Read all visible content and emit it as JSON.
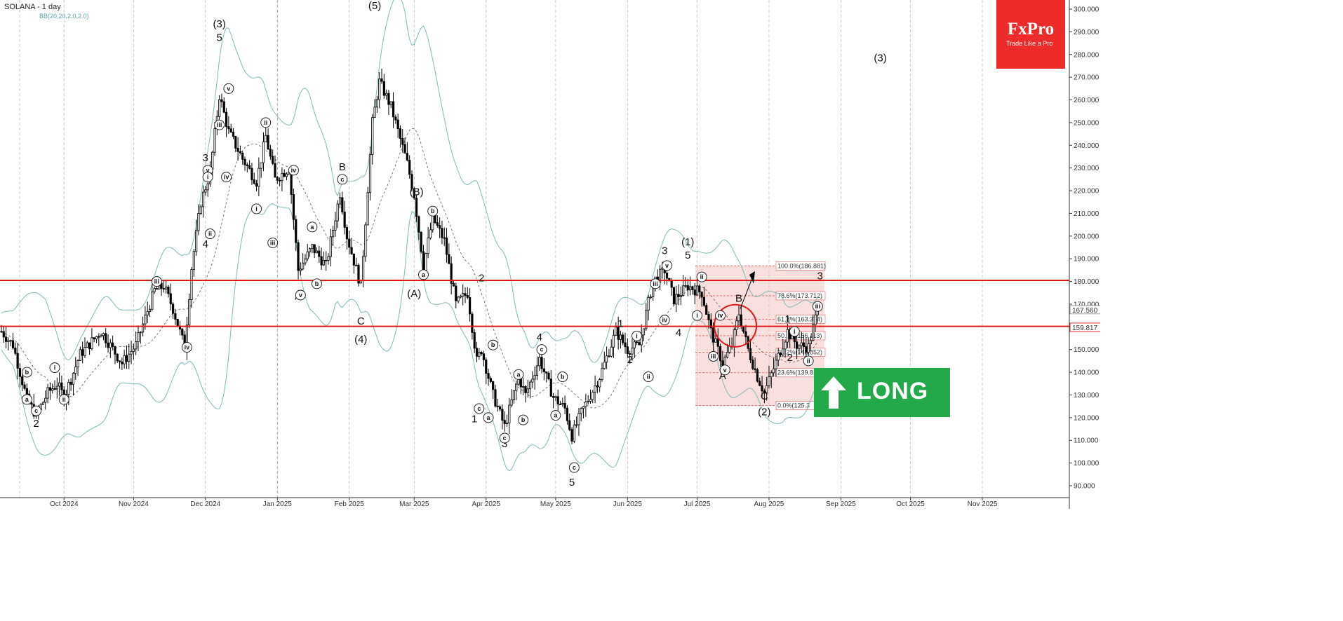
{
  "title": "SOLANA - 1 day",
  "indicator": "BB(20,20,2.0,2.0)",
  "logo": {
    "name": "FxPro",
    "tagline": "Trade Like a Pro",
    "color": "#ee2b2b"
  },
  "signal": {
    "label": "LONG",
    "color": "#23a94a",
    "icon": "arrow-up-icon"
  },
  "price_axis": {
    "ticks": [
      "300.000",
      "290.000",
      "280.000",
      "270.000",
      "260.000",
      "250.000",
      "240.000",
      "230.000",
      "220.000",
      "210.000",
      "200.000",
      "190.000",
      "180.000",
      "170.000",
      "160.000",
      "150.000",
      "140.000",
      "130.000",
      "120.000",
      "110.000",
      "100.000",
      "90.000"
    ],
    "marker_a": "167.560",
    "marker_b": "159.817"
  },
  "date_axis": [
    "Oct 2024",
    "Nov 2024",
    "Dec 2024",
    "Jan 2025",
    "Feb 2025",
    "Mar 2025",
    "Apr 2025",
    "May 2025",
    "Jun 2025",
    "Jul 2025",
    "Aug 2025",
    "Sep 2025",
    "Oct 2025",
    "Nov 2025"
  ],
  "fib_levels": [
    {
      "label": "100.0%(186.881)",
      "price": 186.881
    },
    {
      "label": "78.6%(173.712)",
      "price": 173.712
    },
    {
      "label": "61.8%(163.374)",
      "price": 163.374
    },
    {
      "label": "50.0%(156.113)",
      "price": 156.113
    },
    {
      "label": "38.2%(148.852)",
      "price": 148.852
    },
    {
      "label": "23.6%(139.8",
      "price": 139.8
    },
    {
      "label": "0.0%(125.3",
      "price": 125.3
    }
  ],
  "wave_labels": [
    {
      "t": "(3)",
      "d": 94,
      "p": 292
    },
    {
      "t": "5",
      "d": 94,
      "p": 286
    },
    {
      "t": "3",
      "d": 88,
      "p": 233
    },
    {
      "t": "4",
      "d": 88,
      "p": 195
    },
    {
      "t": "2",
      "d": 15,
      "p": 116
    },
    {
      "t": "B",
      "d": 147,
      "p": 229
    },
    {
      "t": "A",
      "d": 128,
      "p": 172
    },
    {
      "t": "C",
      "d": 155,
      "p": 161
    },
    {
      "t": "(4)",
      "d": 155,
      "p": 153
    },
    {
      "t": "(5)",
      "d": 161,
      "p": 300
    },
    {
      "t": "(B)",
      "d": 179,
      "p": 218
    },
    {
      "t": "(A)",
      "d": 178,
      "p": 173
    },
    {
      "t": "2",
      "d": 207,
      "p": 180
    },
    {
      "t": "1",
      "d": 204,
      "p": 118
    },
    {
      "t": "4",
      "d": 232,
      "p": 154
    },
    {
      "t": "3",
      "d": 217,
      "p": 107
    },
    {
      "t": "5",
      "d": 246,
      "p": 90
    },
    {
      "t": "1",
      "d": 267,
      "p": 160
    },
    {
      "t": "2",
      "d": 271,
      "p": 144
    },
    {
      "t": "3",
      "d": 286,
      "p": 192
    },
    {
      "t": "(1)",
      "d": 296,
      "p": 196
    },
    {
      "t": "5",
      "d": 296,
      "p": 190
    },
    {
      "t": "4",
      "d": 292,
      "p": 156
    },
    {
      "t": "B",
      "d": 318,
      "p": 171
    },
    {
      "t": "A",
      "d": 311,
      "p": 137
    },
    {
      "t": "C",
      "d": 329,
      "p": 128
    },
    {
      "t": "(2)",
      "d": 329,
      "p": 121
    },
    {
      "t": "1",
      "d": 339,
      "p": 162
    },
    {
      "t": "2",
      "d": 340,
      "p": 145
    },
    {
      "t": "3",
      "d": 353,
      "p": 181
    },
    {
      "t": "(3)",
      "d": 379,
      "p": 277
    }
  ],
  "roman_labels": [
    {
      "t": "a",
      "d": 11,
      "p": 128
    },
    {
      "t": "b",
      "d": 11,
      "p": 140
    },
    {
      "t": "c",
      "d": 15,
      "p": 123
    },
    {
      "t": "i",
      "d": 23,
      "p": 142
    },
    {
      "t": "ii",
      "d": 27,
      "p": 128
    },
    {
      "t": "iii",
      "d": 67,
      "p": 180
    },
    {
      "t": "iv",
      "d": 80,
      "p": 151
    },
    {
      "t": "v",
      "d": 89,
      "p": 229
    },
    {
      "t": "i",
      "d": 89,
      "p": 226
    },
    {
      "t": "ii",
      "d": 90,
      "p": 201
    },
    {
      "t": "iii",
      "d": 94,
      "p": 249
    },
    {
      "t": "iv",
      "d": 97,
      "p": 226
    },
    {
      "t": "v",
      "d": 98,
      "p": 265
    },
    {
      "t": "i",
      "d": 110,
      "p": 212
    },
    {
      "t": "ii",
      "d": 114,
      "p": 250
    },
    {
      "t": "iii",
      "d": 117,
      "p": 197
    },
    {
      "t": "iv",
      "d": 126,
      "p": 229
    },
    {
      "t": "a",
      "d": 134,
      "p": 204
    },
    {
      "t": "b",
      "d": 136,
      "p": 179
    },
    {
      "t": "v",
      "d": 129,
      "p": 174
    },
    {
      "t": "c",
      "d": 147,
      "p": 225
    },
    {
      "t": "a",
      "d": 182,
      "p": 183
    },
    {
      "t": "b",
      "d": 186,
      "p": 211
    },
    {
      "t": "c",
      "d": 206,
      "p": 124
    },
    {
      "t": "a",
      "d": 210,
      "p": 120
    },
    {
      "t": "b",
      "d": 212,
      "p": 152
    },
    {
      "t": "c",
      "d": 217,
      "p": 111
    },
    {
      "t": "a",
      "d": 223,
      "p": 139
    },
    {
      "t": "b",
      "d": 225,
      "p": 119
    },
    {
      "t": "c",
      "d": 233,
      "p": 150
    },
    {
      "t": "a",
      "d": 239,
      "p": 121
    },
    {
      "t": "b",
      "d": 242,
      "p": 138
    },
    {
      "t": "c",
      "d": 247,
      "p": 98
    },
    {
      "t": "i",
      "d": 274,
      "p": 156
    },
    {
      "t": "ii",
      "d": 279,
      "p": 138
    },
    {
      "t": "iii",
      "d": 282,
      "p": 179
    },
    {
      "t": "iv",
      "d": 286,
      "p": 163
    },
    {
      "t": "v",
      "d": 287,
      "p": 187
    },
    {
      "t": "ii",
      "d": 302,
      "p": 182
    },
    {
      "t": "i",
      "d": 300,
      "p": 165
    },
    {
      "t": "iii",
      "d": 307,
      "p": 147
    },
    {
      "t": "iv",
      "d": 310,
      "p": 165
    },
    {
      "t": "v",
      "d": 312,
      "p": 141
    },
    {
      "t": "i",
      "d": 342,
      "p": 158
    },
    {
      "t": "ii",
      "d": 348,
      "p": 145
    },
    {
      "t": "iii",
      "d": 352,
      "p": 169
    }
  ],
  "chart_data": {
    "type": "candlestick",
    "title": "SOLANA - 1 day",
    "ylim": [
      86,
      302
    ],
    "x_months": [
      "Oct 2024",
      "Nov 2024",
      "Dec 2024",
      "Jan 2025",
      "Feb 2025",
      "Mar 2025",
      "Apr 2025",
      "May 2025",
      "Jun 2025",
      "Jul 2025",
      "Aug 2025",
      "Sep 2025",
      "Oct 2025",
      "Nov 2025"
    ],
    "price_path": [
      [
        0,
        158
      ],
      [
        5,
        152
      ],
      [
        11,
        128
      ],
      [
        15,
        121
      ],
      [
        20,
        131
      ],
      [
        24,
        135
      ],
      [
        27,
        129
      ],
      [
        34,
        148
      ],
      [
        43,
        158
      ],
      [
        52,
        144
      ],
      [
        58,
        152
      ],
      [
        66,
        176
      ],
      [
        70,
        178
      ],
      [
        74,
        168
      ],
      [
        79,
        151
      ],
      [
        82,
        186
      ],
      [
        86,
        215
      ],
      [
        90,
        228
      ],
      [
        94,
        262
      ],
      [
        98,
        246
      ],
      [
        104,
        234
      ],
      [
        110,
        224
      ],
      [
        114,
        244
      ],
      [
        118,
        225
      ],
      [
        124,
        230
      ],
      [
        128,
        185
      ],
      [
        134,
        195
      ],
      [
        140,
        187
      ],
      [
        146,
        219
      ],
      [
        149,
        200
      ],
      [
        155,
        178
      ],
      [
        160,
        250
      ],
      [
        163,
        268
      ],
      [
        168,
        257
      ],
      [
        175,
        232
      ],
      [
        178,
        218
      ],
      [
        182,
        187
      ],
      [
        186,
        208
      ],
      [
        191,
        198
      ],
      [
        196,
        170
      ],
      [
        201,
        175
      ],
      [
        205,
        145
      ],
      [
        207,
        150
      ],
      [
        212,
        130
      ],
      [
        217,
        116
      ],
      [
        223,
        138
      ],
      [
        226,
        130
      ],
      [
        232,
        146
      ],
      [
        238,
        129
      ],
      [
        243,
        124
      ],
      [
        246,
        112
      ],
      [
        250,
        122
      ],
      [
        258,
        138
      ],
      [
        265,
        158
      ],
      [
        270,
        150
      ],
      [
        275,
        152
      ],
      [
        281,
        180
      ],
      [
        286,
        185
      ],
      [
        290,
        172
      ],
      [
        296,
        178
      ],
      [
        302,
        175
      ],
      [
        306,
        158
      ],
      [
        311,
        144
      ],
      [
        315,
        152
      ],
      [
        318,
        166
      ],
      [
        322,
        150
      ],
      [
        326,
        138
      ],
      [
        329,
        131
      ],
      [
        335,
        147
      ],
      [
        339,
        158
      ],
      [
        343,
        152
      ],
      [
        348,
        151
      ],
      [
        352,
        168
      ]
    ],
    "price_lines": [
      180.5,
      160.2
    ],
    "current_price": 159.817,
    "fib_retracement": {
      "high": 186.881,
      "low": 125.3,
      "levels": [
        "100.0%",
        "78.6%",
        "61.8%",
        "50.0%",
        "38.2%",
        "23.6%",
        "0.0%"
      ]
    }
  }
}
